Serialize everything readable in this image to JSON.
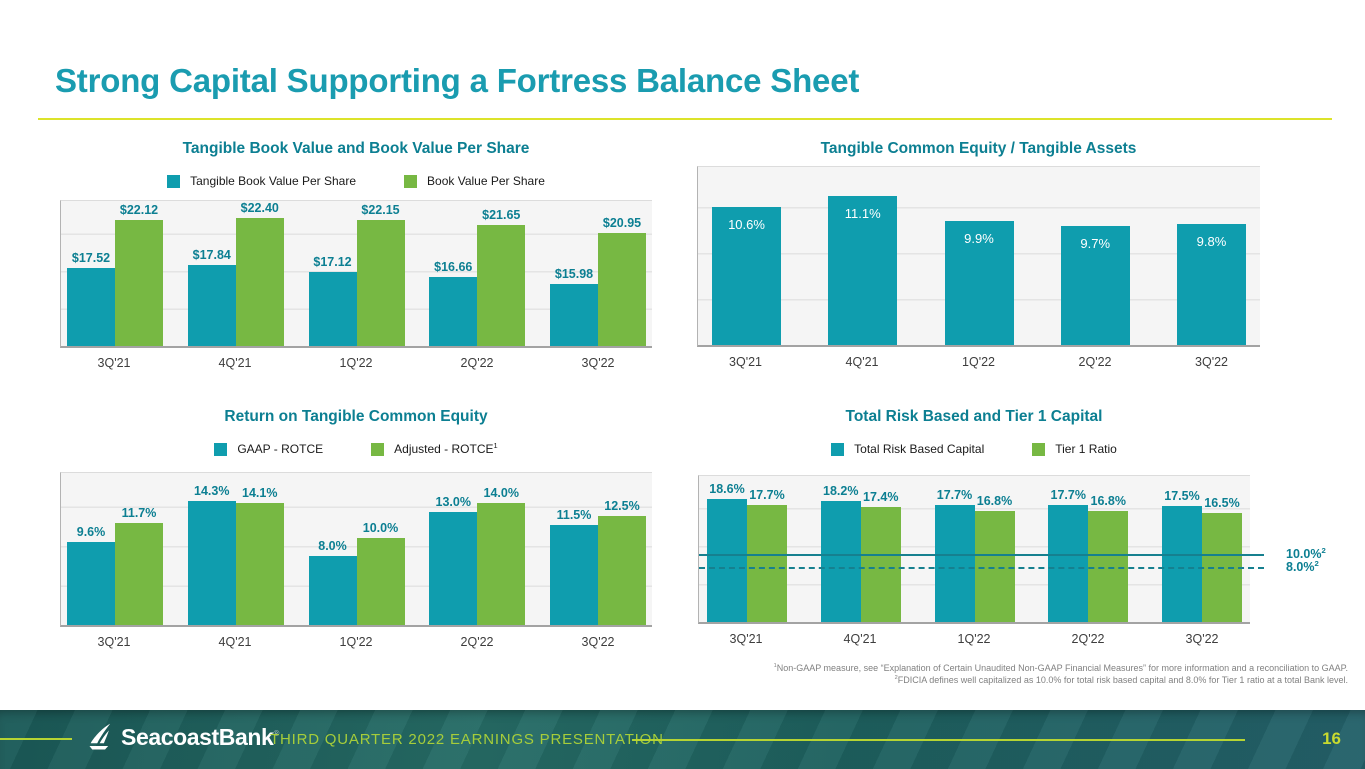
{
  "slide": {
    "title": "Strong Capital Supporting a Fortress Balance Sheet",
    "footer_text": "THIRD QUARTER 2022 EARNINGS PRESENTATION",
    "logo_text": "SeacoastBank",
    "logo_reg": "®",
    "page_number": "16",
    "footnotes": [
      {
        "sup": "1",
        "text": "Non-GAAP measure, see “Explanation of Certain Unaudited Non-GAAP Financial Measures” for more information and a reconciliation to GAAP."
      },
      {
        "sup": "2",
        "text": "FDICIA defines well capitalized as 10.0% for total risk based capital and 8.0% for Tier 1 ratio at a total Bank level."
      }
    ]
  },
  "colors": {
    "teal_bar": "#0f9dae",
    "green_bar": "#77b843",
    "title_teal": "#1a9cb0",
    "chart_title_teal": "#0c7f92",
    "label_teal": "#0c7f92",
    "lime_accent": "#b6d433",
    "underline_yellow": "#dce32a",
    "footer_bg": "#1f605e",
    "page_number_lime": "#c8da2f"
  },
  "chart_data": [
    {
      "id": "tbv",
      "type": "bar",
      "title": "Tangible Book Value and Book Value Per Share",
      "categories": [
        "3Q'21",
        "4Q'21",
        "1Q'22",
        "2Q'22",
        "3Q'22"
      ],
      "ylim": [
        10,
        24
      ],
      "grid": true,
      "legend_position": "top",
      "label_pos": "above",
      "series": [
        {
          "name": "Tangible Book Value Per Share",
          "color": "#0f9dae",
          "values": [
            17.52,
            17.84,
            17.12,
            16.66,
            15.98
          ],
          "labels": [
            "$17.52",
            "$17.84",
            "$17.12",
            "$16.66",
            "$15.98"
          ]
        },
        {
          "name": "Book Value Per Share",
          "color": "#77b843",
          "values": [
            22.12,
            22.4,
            22.15,
            21.65,
            20.95
          ],
          "labels": [
            "$22.12",
            "$22.40",
            "$22.15",
            "$21.65",
            "$20.95"
          ]
        }
      ]
    },
    {
      "id": "tce",
      "type": "bar",
      "title": "Tangible Common Equity / Tangible Assets",
      "categories": [
        "3Q'21",
        "4Q'21",
        "1Q'22",
        "2Q'22",
        "3Q'22"
      ],
      "ylim": [
        4,
        12.5
      ],
      "grid": true,
      "legend_position": "none",
      "label_pos": "inside",
      "series": [
        {
          "name": null,
          "color": "#0f9dae",
          "values": [
            10.6,
            11.1,
            9.9,
            9.7,
            9.8
          ],
          "labels": [
            "10.6%",
            "11.1%",
            "9.9%",
            "9.7%",
            "9.8%"
          ]
        }
      ]
    },
    {
      "id": "rotce",
      "type": "bar",
      "title": "Return on Tangible Common Equity",
      "categories": [
        "3Q'21",
        "4Q'21",
        "1Q'22",
        "2Q'22",
        "3Q'22"
      ],
      "ylim": [
        0,
        17.5
      ],
      "grid": true,
      "legend_position": "top",
      "label_pos": "above",
      "series": [
        {
          "name": "GAAP - ROTCE",
          "color": "#0f9dae",
          "values": [
            9.6,
            14.3,
            8.0,
            13.0,
            11.5
          ],
          "labels": [
            "9.6%",
            "14.3%",
            "8.0%",
            "13.0%",
            "11.5%"
          ]
        },
        {
          "name": "Adjusted - ROTCE",
          "sup": "1",
          "color": "#77b843",
          "values": [
            11.7,
            14.1,
            10.0,
            14.0,
            12.5
          ],
          "labels": [
            "11.7%",
            "14.1%",
            "10.0%",
            "14.0%",
            "12.5%"
          ]
        }
      ]
    },
    {
      "id": "cap",
      "type": "bar",
      "title": "Total Risk Based and Tier 1 Capital",
      "categories": [
        "3Q'21",
        "4Q'21",
        "1Q'22",
        "2Q'22",
        "3Q'22"
      ],
      "ylim": [
        0,
        22
      ],
      "grid": true,
      "legend_position": "top",
      "label_pos": "above",
      "series": [
        {
          "name": "Total Risk Based Capital",
          "color": "#0f9dae",
          "values": [
            18.6,
            18.2,
            17.7,
            17.7,
            17.5
          ],
          "labels": [
            "18.6%",
            "18.2%",
            "17.7%",
            "17.7%",
            "17.5%"
          ]
        },
        {
          "name": "Tier 1 Ratio",
          "color": "#77b843",
          "values": [
            17.7,
            17.4,
            16.8,
            16.8,
            16.5
          ],
          "labels": [
            "17.7%",
            "17.4%",
            "16.8%",
            "16.8%",
            "16.5%"
          ]
        }
      ],
      "ref_lines": [
        {
          "value": 10.0,
          "label": "10.0%",
          "sup": "2",
          "style": "solid"
        },
        {
          "value": 8.0,
          "label": "8.0%",
          "sup": "2",
          "style": "dashed"
        }
      ]
    }
  ]
}
